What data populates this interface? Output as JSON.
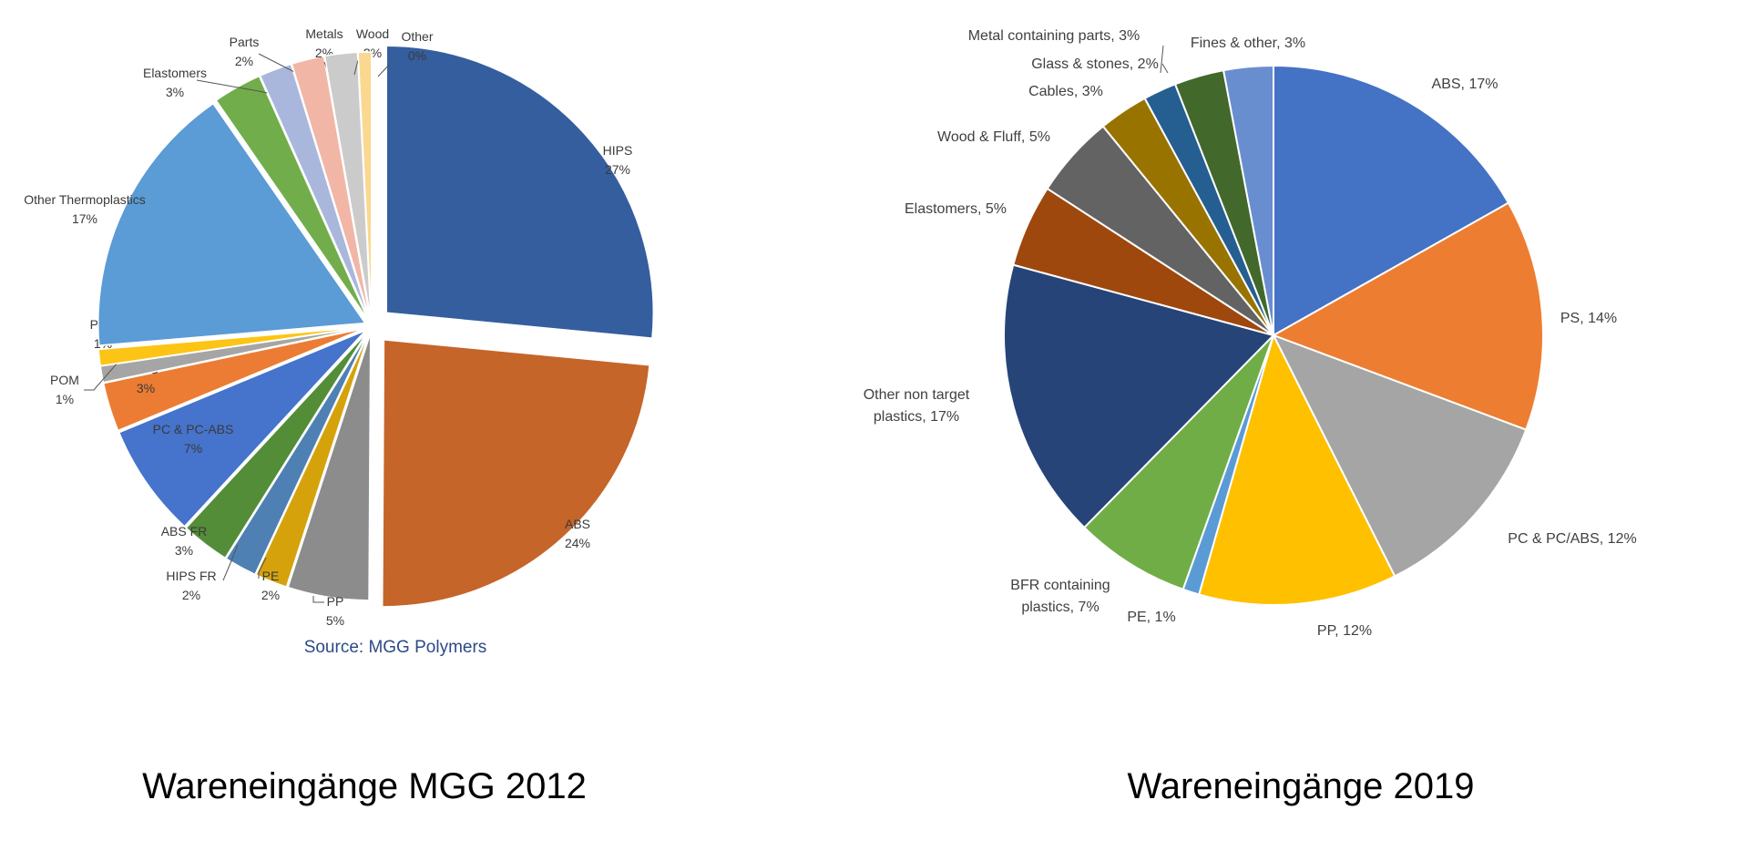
{
  "chart_data": [
    {
      "type": "pie",
      "title": "",
      "caption": "Wareneingänge MGG 2012",
      "source": "Source: MGG Polymers",
      "slices": [
        {
          "label": "HIPS",
          "value": 27,
          "text": "27%",
          "color": "#355e9f"
        },
        {
          "label": "ABS",
          "value": 24,
          "text": "24%",
          "color": "#c5652a"
        },
        {
          "label": "PP",
          "value": 5,
          "text": "5%",
          "color": "#8c8c8c"
        },
        {
          "label": "PE",
          "value": 2,
          "text": "2%",
          "color": "#d6a20c"
        },
        {
          "label": "HIPS FR",
          "value": 2,
          "text": "2%",
          "color": "#4f80b4"
        },
        {
          "label": "ABS FR",
          "value": 3,
          "text": "3%",
          "color": "#548d38"
        },
        {
          "label": "PC & PC-ABS",
          "value": 7,
          "text": "7%",
          "color": "#4673cb"
        },
        {
          "label": "PPO",
          "value": 3,
          "text": "3%",
          "color": "#ec7c33"
        },
        {
          "label": "POM",
          "value": 1,
          "text": "1%",
          "color": "#a5a5a5"
        },
        {
          "label": "PVC",
          "value": 1,
          "text": "1%",
          "color": "#fcc414"
        },
        {
          "label": "Other Thermoplastics",
          "value": 17,
          "text": "17%",
          "color": "#5b9bd6"
        },
        {
          "label": "Elastomers",
          "value": 3,
          "text": "3%",
          "color": "#72ad4b"
        },
        {
          "label": "Parts",
          "value": 2,
          "text": "2%",
          "color": "#aab7dc"
        },
        {
          "label": "Metals",
          "value": 2,
          "text": "2%",
          "color": "#f2b6a6"
        },
        {
          "label": "Wood",
          "value": 2,
          "text": "2%",
          "color": "#cbcbcb"
        },
        {
          "label": "Other",
          "value": 0,
          "text": "0%",
          "color": "#fbd890"
        }
      ]
    },
    {
      "type": "pie",
      "title": "",
      "caption": "Wareneingänge 2019",
      "slices": [
        {
          "label": "ABS, 17%",
          "value": 17,
          "color": "#4472c4"
        },
        {
          "label": "PS, 14%",
          "value": 14,
          "color": "#ed7d31"
        },
        {
          "label": "PC & PC/ABS, 12%",
          "value": 12,
          "color": "#a5a5a5"
        },
        {
          "label": "PP, 12%",
          "value": 12,
          "color": "#ffc000"
        },
        {
          "label": "PE, 1%",
          "value": 1,
          "color": "#5b9bd5"
        },
        {
          "label": "BFR containing plastics, 7%",
          "lines": [
            "BFR containing",
            "plastics, 7%"
          ],
          "value": 7,
          "color": "#70ad47"
        },
        {
          "label": "Other non target plastics, 17%",
          "lines": [
            "Other non target",
            "plastics, 17%"
          ],
          "value": 17,
          "color": "#264478"
        },
        {
          "label": "Elastomers, 5%",
          "value": 5,
          "color": "#9e480e"
        },
        {
          "label": "Wood & Fluff, 5%",
          "value": 5,
          "color": "#636363"
        },
        {
          "label": "Cables, 3%",
          "value": 3,
          "color": "#997300"
        },
        {
          "label": "Glass & stones, 2%",
          "value": 2,
          "color": "#255e91"
        },
        {
          "label": "Metal containing parts, 3%",
          "value": 3,
          "color": "#43682b"
        },
        {
          "label": "Fines & other, 3%",
          "value": 3,
          "color": "#698ed0"
        }
      ]
    }
  ]
}
